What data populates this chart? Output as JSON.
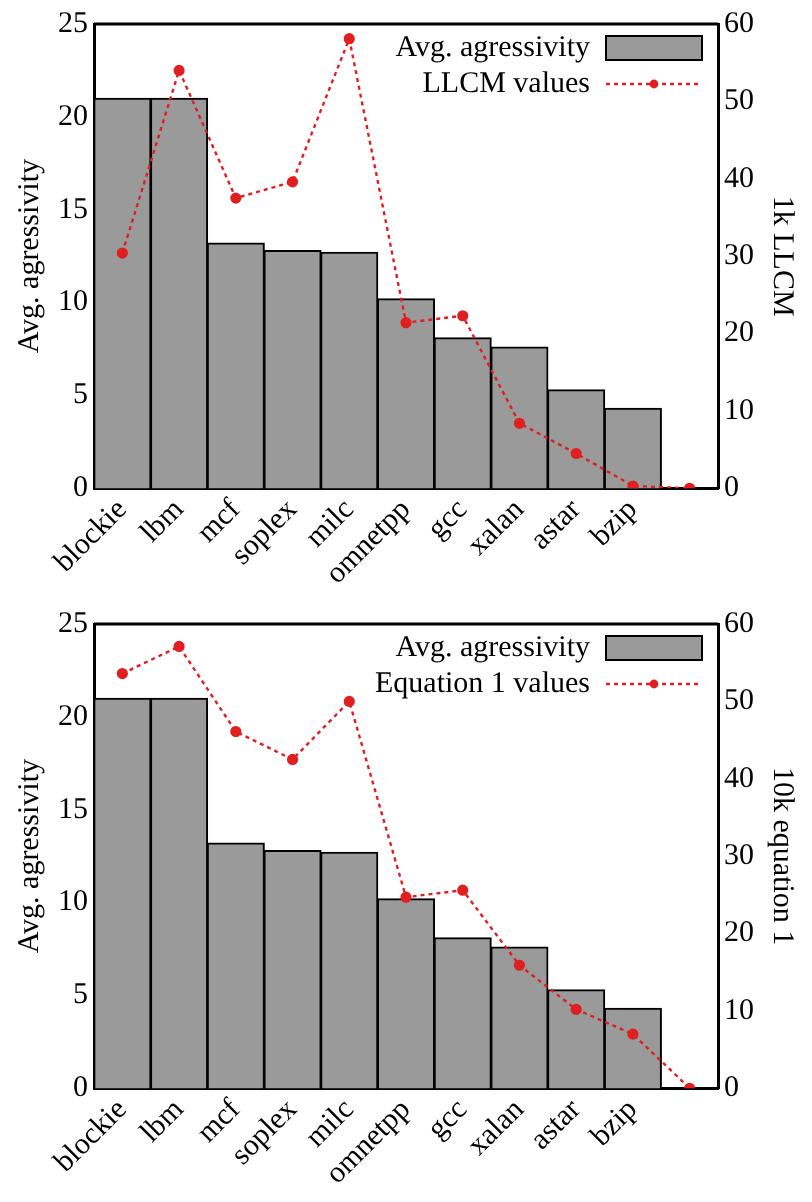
{
  "chart_data": [
    {
      "type": "bar",
      "categories": [
        "blockie",
        "lbm",
        "mcf",
        "soplex",
        "milc",
        "omnetpp",
        "gcc",
        "xalan",
        "astar",
        "bzip",
        null
      ],
      "ylabel": "Avg. agressivity",
      "y2label": "1k LLCM",
      "ylim": [
        0,
        25
      ],
      "yticks": [
        0,
        5,
        10,
        15,
        20,
        25
      ],
      "y2lim": [
        0,
        60
      ],
      "y2ticks": [
        0,
        10,
        20,
        30,
        40,
        50,
        60
      ],
      "grid": false,
      "legend": "top right",
      "series": [
        {
          "name": "Avg. agressivity",
          "color": "#9a9a9a",
          "values": [
            21.0,
            21.0,
            13.2,
            12.8,
            12.7,
            10.2,
            8.1,
            7.6,
            5.3,
            4.3,
            null
          ]
        },
        {
          "name": "LLCM values",
          "type": "line",
          "axis": "y2",
          "color": "#e02020",
          "marker": "circle",
          "line_style": "dotted",
          "values": [
            30.4,
            54.0,
            37.5,
            39.6,
            58.1,
            21.4,
            22.3,
            8.4,
            4.5,
            0.3,
            0
          ]
        }
      ]
    },
    {
      "type": "bar",
      "categories": [
        "blockie",
        "lbm",
        "mcf",
        "soplex",
        "milc",
        "omnetpp",
        "gcc",
        "xalan",
        "astar",
        "bzip",
        null
      ],
      "ylabel": "Avg. agressivity",
      "y2label": "10k equation 1",
      "ylim": [
        0,
        25
      ],
      "yticks": [
        0,
        5,
        10,
        15,
        20,
        25
      ],
      "y2lim": [
        0,
        60
      ],
      "y2ticks": [
        0,
        10,
        20,
        30,
        40,
        50,
        60
      ],
      "grid": false,
      "legend": "top right",
      "series": [
        {
          "name": "Avg. agressivity",
          "color": "#9a9a9a",
          "values": [
            21.0,
            21.0,
            13.2,
            12.8,
            12.7,
            10.2,
            8.1,
            7.6,
            5.3,
            4.3,
            null
          ]
        },
        {
          "name": "Equation 1 values",
          "type": "line",
          "axis": "y2",
          "color": "#e02020",
          "marker": "circle",
          "line_style": "dotted",
          "values": [
            53.6,
            57.1,
            46.1,
            42.5,
            50.0,
            24.7,
            25.6,
            15.9,
            10.2,
            7.0,
            0
          ]
        }
      ]
    }
  ]
}
